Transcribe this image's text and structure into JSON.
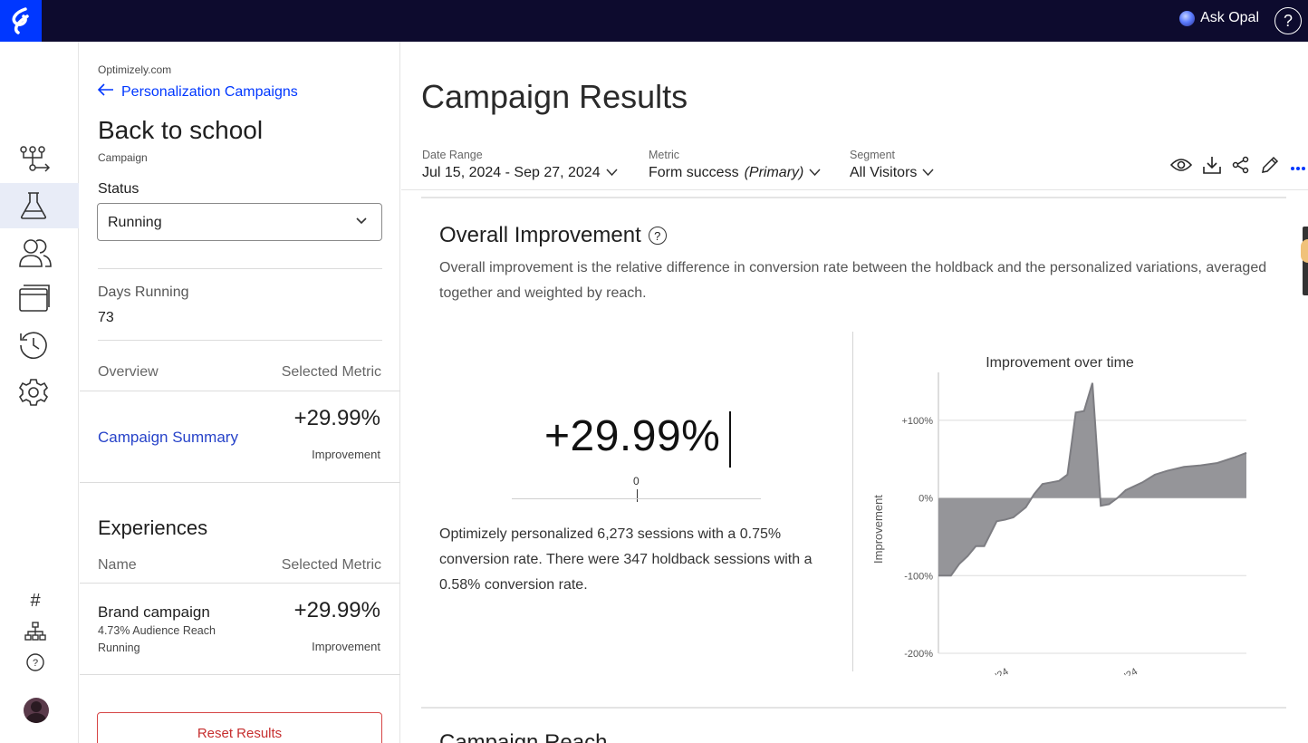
{
  "topbar": {
    "ask_opal": "Ask Opal",
    "help": "?"
  },
  "rail": {
    "items": [
      "workflow-icon",
      "flask-icon",
      "users-icon",
      "windows-icon",
      "history-icon",
      "gear-icon"
    ],
    "active": "flask-icon",
    "bottom": {
      "hash": "#",
      "sitemap": "sitemap-icon",
      "help": "?"
    }
  },
  "panel": {
    "org": "Optimizely.com",
    "back_label": "Personalization Campaigns",
    "title": "Back to school",
    "type": "Campaign",
    "status_label": "Status",
    "status_value": "Running",
    "days_label": "Days Running",
    "days_value": "73",
    "overview_label": "Overview",
    "selected_metric_label": "Selected Metric",
    "summary_link": "Campaign Summary",
    "summary_value": "+29.99%",
    "summary_sub": "Improvement",
    "experiences_title": "Experiences",
    "name_label": "Name",
    "exp_metric_label": "Selected Metric",
    "experience": {
      "name": "Brand campaign",
      "reach": "4.73% Audience Reach",
      "state": "Running",
      "value": "+29.99%",
      "sub": "Improvement"
    },
    "reset_label": "Reset Results"
  },
  "main": {
    "title": "Campaign Results",
    "filters": {
      "date_label": "Date Range",
      "date_value": "Jul 15, 2024 - Sep 27, 2024",
      "metric_label": "Metric",
      "metric_value": "Form success",
      "metric_tag": "(Primary)",
      "segment_label": "Segment",
      "segment_value": "All Visitors"
    },
    "overall": {
      "title": "Overall Improvement",
      "description": "Overall improvement is the relative difference in conversion rate between the holdback and the personalized variations, averaged together and weighted by reach.",
      "big_value": "+29.99%",
      "zero_label": "0",
      "summary": "Optimizely personalized 6,273 sessions with a 0.75% conversion rate. There were 347 holdback sessions with a 0.58% conversion rate."
    },
    "next_section": "Campaign Reach"
  },
  "chart_data": {
    "type": "area",
    "title": "Improvement over time",
    "ylabel": "Improvement",
    "ylim": [
      -200,
      150
    ],
    "yticks": [
      100,
      0,
      -100,
      -200
    ],
    "ytick_labels": [
      "+100%",
      "0%",
      "-100%",
      "-200%"
    ],
    "xticks": [
      "Aug '24",
      "Sep '24"
    ],
    "grid": true,
    "color": "#8f8f93",
    "series": [
      {
        "x": [
          "2024-07-15",
          "2024-07-18",
          "2024-07-20",
          "2024-07-22",
          "2024-07-24",
          "2024-07-26",
          "2024-07-29",
          "2024-07-31",
          "2024-08-02",
          "2024-08-05",
          "2024-08-07",
          "2024-08-09",
          "2024-08-11",
          "2024-08-13",
          "2024-08-15",
          "2024-08-17",
          "2024-08-19",
          "2024-08-21",
          "2024-08-23",
          "2024-08-25",
          "2024-08-27",
          "2024-08-29",
          "2024-08-31",
          "2024-09-02",
          "2024-09-05",
          "2024-09-08",
          "2024-09-12",
          "2024-09-16",
          "2024-09-20",
          "2024-09-24",
          "2024-09-27"
        ],
        "y": [
          -100,
          -100,
          -85,
          -75,
          -62,
          -62,
          -30,
          -28,
          -25,
          -12,
          5,
          18,
          20,
          22,
          30,
          110,
          112,
          148,
          -10,
          -8,
          0,
          10,
          15,
          20,
          30,
          35,
          40,
          42,
          45,
          52,
          58
        ]
      }
    ]
  }
}
